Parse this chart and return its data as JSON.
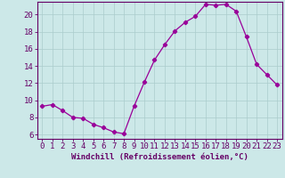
{
  "x": [
    0,
    1,
    2,
    3,
    4,
    5,
    6,
    7,
    8,
    9,
    10,
    11,
    12,
    13,
    14,
    15,
    16,
    17,
    18,
    19,
    20,
    21,
    22,
    23
  ],
  "y": [
    9.3,
    9.5,
    8.8,
    8.0,
    7.9,
    7.2,
    6.8,
    6.3,
    6.1,
    9.3,
    12.1,
    14.7,
    16.5,
    18.1,
    19.1,
    19.8,
    21.2,
    21.1,
    21.2,
    20.4,
    17.4,
    14.2,
    13.0,
    11.8
  ],
  "line_color": "#990099",
  "marker": "P",
  "marker_size": 3,
  "xlim": [
    -0.5,
    23.5
  ],
  "ylim": [
    5.5,
    21.5
  ],
  "yticks": [
    6,
    8,
    10,
    12,
    14,
    16,
    18,
    20
  ],
  "xticks": [
    0,
    1,
    2,
    3,
    4,
    5,
    6,
    7,
    8,
    9,
    10,
    11,
    12,
    13,
    14,
    15,
    16,
    17,
    18,
    19,
    20,
    21,
    22,
    23
  ],
  "xlabel": "Windchill (Refroidissement éolien,°C)",
  "background_color": "#cce8e8",
  "grid_color": "#aacccc",
  "axis_color": "#660066",
  "tick_color": "#660066",
  "label_color": "#660066",
  "font_size": 6.5
}
